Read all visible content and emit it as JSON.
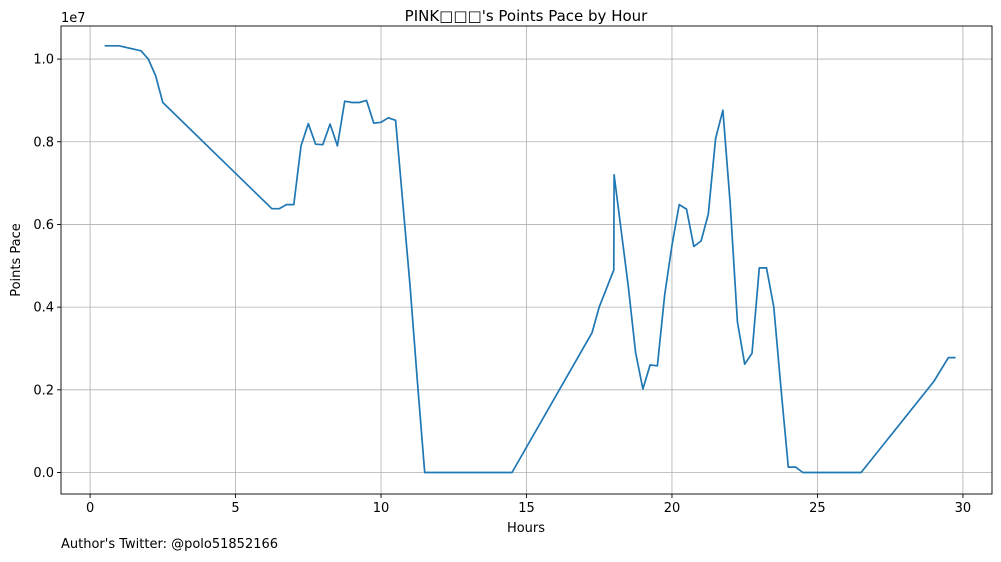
{
  "chart_data": {
    "type": "line",
    "title": "PINK□□□'s Points Pace by Hour",
    "xlabel": "Hours",
    "ylabel": "Points Pace",
    "y_offset_label": "1e7",
    "xlim": [
      -1,
      31
    ],
    "ylim": [
      -520000,
      10800000
    ],
    "x_ticks": [
      0,
      5,
      10,
      15,
      20,
      25,
      30
    ],
    "x_tick_labels": [
      "0",
      "5",
      "10",
      "15",
      "20",
      "25",
      "30"
    ],
    "y_ticks": [
      0,
      2000000,
      4000000,
      6000000,
      8000000,
      10000000
    ],
    "y_tick_labels": [
      "0.0",
      "0.2",
      "0.4",
      "0.6",
      "0.8",
      "1.0"
    ],
    "grid": true,
    "line_color": "#1f77b4",
    "series": [
      {
        "x": [
          0.5,
          1.0,
          1.75,
          2.0,
          2.25,
          2.5,
          6.25,
          6.5,
          6.75,
          7.0,
          7.25,
          7.5,
          7.75,
          8.0,
          8.25,
          8.5,
          8.75,
          9.0,
          9.25,
          9.5,
          9.75,
          10.0,
          10.25,
          10.5,
          10.75,
          11.0,
          11.25,
          11.5,
          14.5,
          17.25,
          17.5,
          18.0,
          18.01,
          18.5,
          18.75,
          19.0,
          19.25,
          19.5,
          19.75,
          20.0,
          20.25,
          20.5,
          20.75,
          21.0,
          21.25,
          21.5,
          21.75,
          22.0,
          22.25,
          22.5,
          22.75,
          23.0,
          23.25,
          23.5,
          23.75,
          24.0,
          24.25,
          24.5,
          26.5,
          29.0,
          29.5,
          29.75
        ],
        "y": [
          10320000,
          10320000,
          10200000,
          10000000,
          9600000,
          8950000,
          6380000,
          6380000,
          6480000,
          6480000,
          7900000,
          8440000,
          7940000,
          7930000,
          8430000,
          7900000,
          8980000,
          8950000,
          8950000,
          9000000,
          8450000,
          8470000,
          8580000,
          8520000,
          6500000,
          4500000,
          2200000,
          0,
          0,
          3380000,
          4000000,
          4900000,
          7200000,
          4500000,
          2900000,
          2020000,
          2600000,
          2580000,
          4300000,
          5500000,
          6480000,
          6370000,
          5470000,
          5600000,
          6250000,
          8080000,
          8760000,
          6500000,
          3650000,
          2620000,
          2880000,
          4950000,
          4950000,
          4000000,
          2000000,
          130000,
          130000,
          0,
          0,
          2200000,
          2780000,
          2780000
        ]
      }
    ]
  },
  "footnote": "Author's Twitter: @polo51852166"
}
